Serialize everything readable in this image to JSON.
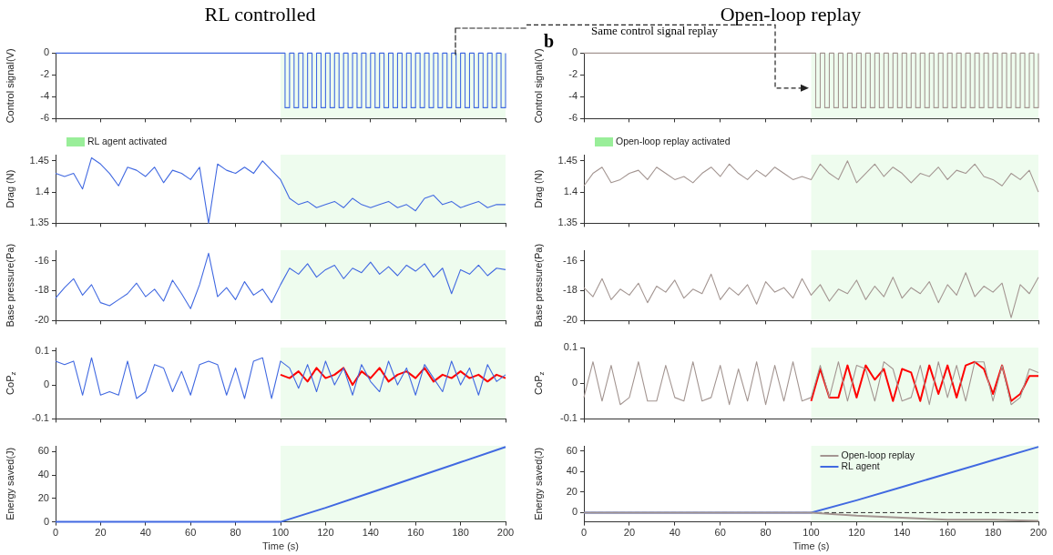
{
  "chart_data": [
    {
      "type": "step",
      "title": "RL controlled",
      "ylabel": "Control signal(V)",
      "xlim": [
        0,
        200
      ],
      "xticks": [
        0,
        20,
        40,
        60,
        80,
        100,
        120,
        140,
        160,
        180,
        200
      ],
      "ylim": [
        -6,
        0
      ],
      "yticks": [
        -6,
        -4,
        -2,
        0
      ],
      "tick_labels": "y",
      "bands": [
        {
          "axis": "x",
          "from": 100,
          "to": 200,
          "color": "#99ee99"
        }
      ],
      "series": [
        {
          "color": "#4169e1",
          "x": [
            0,
            100,
            102,
            104,
            106,
            108,
            110,
            112,
            114,
            116,
            118,
            120,
            122,
            124,
            126,
            128,
            130,
            132,
            134,
            136,
            138,
            140,
            142,
            144,
            146,
            148,
            150,
            152,
            154,
            156,
            158,
            160,
            162,
            164,
            166,
            168,
            170,
            172,
            174,
            176,
            178,
            180,
            182,
            184,
            186,
            188,
            190,
            192,
            194,
            196,
            198,
            200
          ],
          "values": [
            0,
            0,
            -5,
            0,
            -5,
            0,
            -5,
            0,
            -5,
            0,
            -5,
            0,
            -5,
            0,
            -5,
            0,
            -5,
            0,
            -5,
            0,
            -5,
            0,
            -5,
            0,
            -5,
            0,
            -5,
            0,
            -5,
            0,
            -5,
            0,
            -5,
            0,
            -5,
            0,
            -5,
            0,
            -5,
            0,
            -5,
            0,
            -5,
            0,
            -5,
            0,
            -5,
            0,
            -5,
            0,
            -5,
            0
          ]
        }
      ]
    },
    {
      "type": "line",
      "ylabel": "Drag (N)",
      "xlim": [
        0,
        200
      ],
      "xticks": [
        0,
        20,
        40,
        60,
        80,
        100,
        120,
        140,
        160,
        180,
        200
      ],
      "ylim": [
        1.35,
        1.46
      ],
      "yticks": [
        1.35,
        1.4,
        1.45
      ],
      "tick_labels": "y",
      "legend": "top left",
      "bands": [
        {
          "axis": "x",
          "from": 100,
          "to": 200,
          "color": "#99ee99",
          "label": "RL agent activated"
        }
      ],
      "x": [
        0,
        4,
        8,
        12,
        16,
        20,
        24,
        28,
        32,
        36,
        40,
        44,
        48,
        52,
        56,
        60,
        64,
        68,
        72,
        76,
        80,
        84,
        88,
        92,
        96,
        100,
        104,
        108,
        112,
        116,
        120,
        124,
        128,
        132,
        136,
        140,
        144,
        148,
        152,
        156,
        160,
        164,
        168,
        172,
        176,
        180,
        184,
        188,
        192,
        196,
        200
      ],
      "series": [
        {
          "color": "#4169e1",
          "values": [
            1.43,
            1.425,
            1.43,
            1.405,
            1.455,
            1.445,
            1.43,
            1.41,
            1.44,
            1.435,
            1.425,
            1.44,
            1.415,
            1.435,
            1.43,
            1.42,
            1.44,
            1.35,
            1.445,
            1.435,
            1.43,
            1.44,
            1.43,
            1.45,
            1.435,
            1.42,
            1.39,
            1.38,
            1.385,
            1.375,
            1.38,
            1.385,
            1.375,
            1.39,
            1.38,
            1.375,
            1.38,
            1.385,
            1.375,
            1.38,
            1.37,
            1.39,
            1.395,
            1.38,
            1.385,
            1.375,
            1.38,
            1.385,
            1.375,
            1.38,
            1.38
          ]
        }
      ]
    },
    {
      "type": "line",
      "ylabel": "Base pressure(Pa)",
      "xlim": [
        0,
        200
      ],
      "xticks": [
        0,
        20,
        40,
        60,
        80,
        100,
        120,
        140,
        160,
        180,
        200
      ],
      "ylim": [
        -20,
        -15.3
      ],
      "yticks": [
        -20,
        -18,
        -16
      ],
      "tick_labels": "y",
      "bands": [
        {
          "axis": "x",
          "from": 100,
          "to": 200,
          "color": "#99ee99"
        }
      ],
      "x": [
        0,
        4,
        8,
        12,
        16,
        20,
        24,
        28,
        32,
        36,
        40,
        44,
        48,
        52,
        56,
        60,
        64,
        68,
        72,
        76,
        80,
        84,
        88,
        92,
        96,
        100,
        104,
        108,
        112,
        116,
        120,
        124,
        128,
        132,
        136,
        140,
        144,
        148,
        152,
        156,
        160,
        164,
        168,
        172,
        176,
        180,
        184,
        188,
        192,
        196,
        200
      ],
      "series": [
        {
          "color": "#4169e1",
          "values": [
            -18.5,
            -17.8,
            -17.2,
            -18.3,
            -17.6,
            -18.8,
            -19,
            -18.6,
            -18.2,
            -17.5,
            -18.4,
            -17.9,
            -18.7,
            -17.3,
            -18.2,
            -19.2,
            -17.6,
            -15.5,
            -18.4,
            -17.8,
            -18.6,
            -17.4,
            -18.3,
            -17.9,
            -18.8,
            -17.6,
            -16.5,
            -16.9,
            -16.2,
            -17.1,
            -16.6,
            -16.3,
            -17.2,
            -16.5,
            -16.8,
            -16.1,
            -16.9,
            -16.4,
            -17,
            -16.3,
            -16.7,
            -16.2,
            -17.1,
            -16.5,
            -18.2,
            -16.6,
            -16.9,
            -16.3,
            -17,
            -16.5,
            -16.6
          ]
        }
      ]
    },
    {
      "type": "line",
      "ylabel": "CoP$_{z}$",
      "xlim": [
        0,
        200
      ],
      "xticks": [
        0,
        20,
        40,
        60,
        80,
        100,
        120,
        140,
        160,
        180,
        200
      ],
      "ylim": [
        -0.1,
        0.11
      ],
      "yticks": [
        -0.1,
        0,
        0.1
      ],
      "tick_labels": "y",
      "bands": [
        {
          "axis": "x",
          "from": 100,
          "to": 200,
          "color": "#99ee99"
        }
      ],
      "x": [
        0,
        4,
        8,
        12,
        16,
        20,
        24,
        28,
        32,
        36,
        40,
        44,
        48,
        52,
        56,
        60,
        64,
        68,
        72,
        76,
        80,
        84,
        88,
        92,
        96,
        100,
        104,
        108,
        112,
        116,
        120,
        124,
        128,
        132,
        136,
        140,
        144,
        148,
        152,
        156,
        160,
        164,
        168,
        172,
        176,
        180,
        184,
        188,
        192,
        196,
        200
      ],
      "series": [
        {
          "color": "#4169e1",
          "values": [
            0.07,
            0.06,
            0.07,
            -0.03,
            0.08,
            -0.03,
            -0.02,
            -0.03,
            0.07,
            -0.04,
            -0.02,
            0.06,
            0.05,
            -0.02,
            0.04,
            -0.03,
            0.06,
            0.07,
            0.06,
            -0.03,
            0.05,
            -0.04,
            0.07,
            0.08,
            -0.04,
            0.07,
            0.05,
            -0.01,
            0.06,
            -0.02,
            0.07,
            0,
            0.05,
            -0.03,
            0.06,
            0.01,
            -0.02,
            0.07,
            0,
            0.05,
            -0.03,
            0.06,
            0.02,
            -0.02,
            0.07,
            0,
            0.05,
            -0.03,
            0.06,
            0.01,
            0.03
          ]
        },
        {
          "color": "#ff0000",
          "x": [
            100,
            104,
            108,
            112,
            116,
            120,
            124,
            128,
            132,
            136,
            140,
            144,
            148,
            152,
            156,
            160,
            164,
            168,
            172,
            176,
            180,
            184,
            188,
            192,
            196,
            200
          ],
          "values": [
            0.03,
            0.02,
            0.04,
            0.01,
            0.05,
            0.02,
            0.03,
            0.05,
            0,
            0.04,
            0.02,
            0.05,
            0.01,
            0.03,
            0.04,
            0.02,
            0.05,
            0.01,
            0.03,
            0.02,
            0.04,
            0.02,
            0.03,
            0.01,
            0.03,
            0.02
          ]
        }
      ]
    },
    {
      "type": "line",
      "ylabel": "Energy saved(J)",
      "xlabel": "Time (s)",
      "xlim": [
        0,
        200
      ],
      "xticks": [
        0,
        20,
        40,
        60,
        80,
        100,
        120,
        140,
        160,
        180,
        200
      ],
      "ylim": [
        0,
        65
      ],
      "yticks": [
        0,
        20,
        40,
        60
      ],
      "bands": [
        {
          "axis": "x",
          "from": 100,
          "to": 200,
          "color": "#99ee99"
        }
      ],
      "x": [
        0,
        100,
        120,
        140,
        160,
        180,
        200
      ],
      "series": [
        {
          "color": "#4169e1",
          "values": [
            0,
            0,
            12,
            25,
            38,
            51,
            64
          ]
        }
      ]
    },
    {
      "type": "step",
      "title": "Open-loop replay",
      "annotations": [
        "b",
        {
          "text": "Same control signal replay",
          "x": 99,
          "y": -3.2
        }
      ],
      "ylabel": "Control signal(V)",
      "xlim": [
        0,
        200
      ],
      "xticks": [
        0,
        20,
        40,
        60,
        80,
        100,
        120,
        140,
        160,
        180,
        200
      ],
      "ylim": [
        -6,
        0
      ],
      "yticks": [
        -6,
        -4,
        -2,
        0
      ],
      "tick_labels": "y",
      "bands": [
        {
          "axis": "x",
          "from": 100,
          "to": 200,
          "color": "#99ee99"
        }
      ],
      "series": [
        {
          "color": "#a39591",
          "x": [
            0,
            100,
            102,
            104,
            106,
            108,
            110,
            112,
            114,
            116,
            118,
            120,
            122,
            124,
            126,
            128,
            130,
            132,
            134,
            136,
            138,
            140,
            142,
            144,
            146,
            148,
            150,
            152,
            154,
            156,
            158,
            160,
            162,
            164,
            166,
            168,
            170,
            172,
            174,
            176,
            178,
            180,
            182,
            184,
            186,
            188,
            190,
            192,
            194,
            196,
            198,
            200
          ],
          "values": [
            0,
            0,
            -5,
            0,
            -5,
            0,
            -5,
            0,
            -5,
            0,
            -5,
            0,
            -5,
            0,
            -5,
            0,
            -5,
            0,
            -5,
            0,
            -5,
            0,
            -5,
            0,
            -5,
            0,
            -5,
            0,
            -5,
            0,
            -5,
            0,
            -5,
            0,
            -5,
            0,
            -5,
            0,
            -5,
            0,
            -5,
            0,
            -5,
            0,
            -5,
            0,
            -5,
            0,
            -5,
            0,
            -5,
            0
          ]
        }
      ]
    },
    {
      "type": "line",
      "ylabel": "Drag (N)",
      "xlim": [
        0,
        200
      ],
      "xticks": [
        0,
        20,
        40,
        60,
        80,
        100,
        120,
        140,
        160,
        180,
        200
      ],
      "ylim": [
        1.35,
        1.46
      ],
      "yticks": [
        1.35,
        1.4,
        1.45
      ],
      "tick_labels": "y",
      "legend": "top left",
      "bands": [
        {
          "axis": "x",
          "from": 100,
          "to": 200,
          "color": "#99ee99",
          "label": "Open-loop replay activated"
        }
      ],
      "x": [
        0,
        4,
        8,
        12,
        16,
        20,
        24,
        28,
        32,
        36,
        40,
        44,
        48,
        52,
        56,
        60,
        64,
        68,
        72,
        76,
        80,
        84,
        88,
        92,
        96,
        100,
        104,
        108,
        112,
        116,
        120,
        124,
        128,
        132,
        136,
        140,
        144,
        148,
        152,
        156,
        160,
        164,
        168,
        172,
        176,
        180,
        184,
        188,
        192,
        196,
        200
      ],
      "series": [
        {
          "color": "#a39591",
          "values": [
            1.41,
            1.43,
            1.44,
            1.415,
            1.42,
            1.43,
            1.435,
            1.42,
            1.44,
            1.43,
            1.42,
            1.425,
            1.415,
            1.43,
            1.44,
            1.425,
            1.445,
            1.43,
            1.42,
            1.435,
            1.425,
            1.44,
            1.43,
            1.42,
            1.425,
            1.42,
            1.445,
            1.43,
            1.42,
            1.45,
            1.415,
            1.43,
            1.445,
            1.425,
            1.44,
            1.43,
            1.415,
            1.43,
            1.425,
            1.44,
            1.42,
            1.435,
            1.43,
            1.445,
            1.425,
            1.42,
            1.41,
            1.43,
            1.42,
            1.435,
            1.4
          ]
        }
      ]
    },
    {
      "type": "line",
      "ylabel": "Base pressure(Pa)",
      "xlim": [
        0,
        200
      ],
      "xticks": [
        0,
        20,
        40,
        60,
        80,
        100,
        120,
        140,
        160,
        180,
        200
      ],
      "ylim": [
        -20,
        -15.3
      ],
      "yticks": [
        -20,
        -18,
        -16
      ],
      "tick_labels": "y",
      "bands": [
        {
          "axis": "x",
          "from": 100,
          "to": 200,
          "color": "#99ee99"
        }
      ],
      "x": [
        0,
        4,
        8,
        12,
        16,
        20,
        24,
        28,
        32,
        36,
        40,
        44,
        48,
        52,
        56,
        60,
        64,
        68,
        72,
        76,
        80,
        84,
        88,
        92,
        96,
        100,
        104,
        108,
        112,
        116,
        120,
        124,
        128,
        132,
        136,
        140,
        144,
        148,
        152,
        156,
        160,
        164,
        168,
        172,
        176,
        180,
        184,
        188,
        192,
        196,
        200
      ],
      "series": [
        {
          "color": "#a39591",
          "values": [
            -17.8,
            -18.4,
            -17.2,
            -18.6,
            -17.9,
            -18.3,
            -17.5,
            -18.8,
            -17.7,
            -18.1,
            -17.3,
            -18.5,
            -17.9,
            -18.2,
            -16.9,
            -18.6,
            -17.8,
            -18.3,
            -17.6,
            -18.9,
            -17.4,
            -18.1,
            -17.8,
            -18.5,
            -17.2,
            -18.3,
            -17.6,
            -18.7,
            -17.9,
            -18.2,
            -17.3,
            -18.6,
            -17.7,
            -18.4,
            -17.1,
            -18.5,
            -17.8,
            -18.2,
            -17.4,
            -18.8,
            -17.6,
            -18.3,
            -16.8,
            -18.4,
            -17.7,
            -18.1,
            -17.5,
            -19.8,
            -17.6,
            -18.2,
            -17.1
          ]
        }
      ]
    },
    {
      "type": "line",
      "ylabel": "CoP$_{z}$",
      "xlim": [
        0,
        200
      ],
      "xticks": [
        0,
        20,
        40,
        60,
        80,
        100,
        120,
        140,
        160,
        180,
        200
      ],
      "ylim": [
        -0.1,
        0.1
      ],
      "yticks": [
        -0.1,
        0,
        0.1
      ],
      "tick_labels": "y",
      "bands": [
        {
          "axis": "x",
          "from": 100,
          "to": 200,
          "color": "#99ee99"
        }
      ],
      "x": [
        0,
        4,
        8,
        12,
        16,
        20,
        24,
        28,
        32,
        36,
        40,
        44,
        48,
        52,
        56,
        60,
        64,
        68,
        72,
        76,
        80,
        84,
        88,
        92,
        96,
        100,
        104,
        108,
        112,
        116,
        120,
        124,
        128,
        132,
        136,
        140,
        144,
        148,
        152,
        156,
        160,
        164,
        168,
        172,
        176,
        180,
        184,
        188,
        192,
        196,
        200
      ],
      "series": [
        {
          "color": "#a39591",
          "values": [
            -0.04,
            0.06,
            -0.05,
            0.05,
            -0.06,
            -0.04,
            0.06,
            -0.05,
            -0.05,
            0.05,
            -0.04,
            -0.05,
            0.06,
            -0.05,
            -0.04,
            0.05,
            -0.06,
            0.04,
            -0.05,
            0.06,
            -0.06,
            0.05,
            -0.05,
            0.06,
            -0.05,
            -0.04,
            0.05,
            -0.04,
            0.06,
            -0.05,
            0.05,
            0.04,
            -0.05,
            0.06,
            0.04,
            -0.05,
            -0.04,
            0.05,
            -0.06,
            0.06,
            -0.04,
            0.05,
            -0.05,
            0.06,
            0.06,
            -0.05,
            0.05,
            -0.06,
            -0.04,
            0.04,
            0.03
          ]
        },
        {
          "color": "#ff0000",
          "x": [
            100,
            104,
            108,
            112,
            116,
            120,
            124,
            128,
            132,
            136,
            140,
            144,
            148,
            152,
            156,
            160,
            164,
            168,
            172,
            176,
            180,
            184,
            188,
            192,
            196,
            200
          ],
          "values": [
            -0.05,
            0.04,
            -0.04,
            -0.04,
            0.05,
            -0.04,
            0.05,
            0.01,
            0.04,
            -0.05,
            0.04,
            0.03,
            -0.05,
            0.05,
            -0.03,
            0.05,
            -0.04,
            0.05,
            0.06,
            0.04,
            -0.03,
            0.05,
            -0.05,
            -0.03,
            0.02,
            0.02
          ]
        }
      ]
    },
    {
      "type": "line",
      "ylabel": "Energy saved(J)",
      "xlabel": "Time (s)",
      "xlim": [
        0,
        200
      ],
      "xticks": [
        0,
        20,
        40,
        60,
        80,
        100,
        120,
        140,
        160,
        180,
        200
      ],
      "ylim": [
        -9,
        65
      ],
      "yticks": [
        0,
        20,
        40,
        60
      ],
      "legend": "top",
      "bands": [
        {
          "axis": "x",
          "from": 100,
          "to": 200,
          "color": "#99ee99"
        }
      ],
      "ref_lines": [
        {
          "axis": "y",
          "value": 0,
          "color": "#333333",
          "line_style": "dashed"
        }
      ],
      "x": [
        0,
        100,
        120,
        140,
        160,
        180,
        200
      ],
      "series": [
        {
          "name": "Open-loop replay",
          "color": "#a39591",
          "values": [
            0,
            0,
            -3,
            -5,
            -7,
            -7,
            -8
          ]
        },
        {
          "name": "RL agent",
          "color": "#4169e1",
          "values": [
            0,
            0,
            12,
            25,
            38,
            51,
            64
          ]
        }
      ]
    }
  ]
}
